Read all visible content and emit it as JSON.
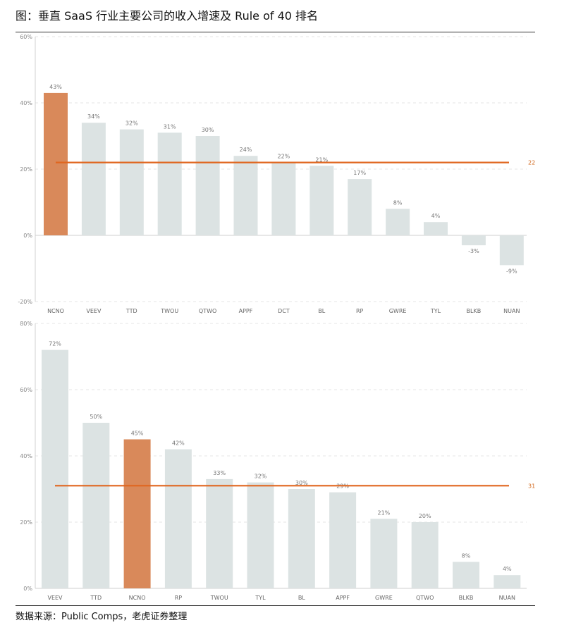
{
  "header": {
    "title": "图：垂直 SaaS 行业主要公司的收入增速及 Rule of 40 排名"
  },
  "footer": {
    "source": "数据来源：Public Comps，老虎证券整理"
  },
  "colors": {
    "bar": "#dce3e3",
    "highlight": "#d9895a",
    "reference_line": "#e0661f"
  },
  "chart_data": [
    {
      "type": "bar",
      "categories": [
        "NCNO",
        "VEEV",
        "TTD",
        "TWOU",
        "QTWO",
        "APPF",
        "DCT",
        "BL",
        "RP",
        "GWRE",
        "TYL",
        "BLKB",
        "NUAN"
      ],
      "values": [
        43,
        34,
        32,
        31,
        30,
        24,
        22,
        21,
        17,
        8,
        4,
        -3,
        -9
      ],
      "data_labels": [
        "43%",
        "34%",
        "32%",
        "31%",
        "30%",
        "24%",
        "22%",
        "21%",
        "17%",
        "8%",
        "4%",
        "-3%",
        "-9%"
      ],
      "highlight": "NCNO",
      "reference_line": {
        "value": 22,
        "label": "22"
      },
      "yticks": [
        "60%",
        "40%",
        "20%",
        "0%",
        "-20%"
      ],
      "ylim": [
        -20,
        60
      ],
      "grid": true
    },
    {
      "type": "bar",
      "categories": [
        "VEEV",
        "TTD",
        "NCNO",
        "RP",
        "TWOU",
        "TYL",
        "BL",
        "APPF",
        "GWRE",
        "QTWO",
        "BLKB",
        "NUAN"
      ],
      "values": [
        72,
        50,
        45,
        42,
        33,
        32,
        30,
        29,
        21,
        20,
        8,
        4
      ],
      "data_labels": [
        "72%",
        "50%",
        "45%",
        "42%",
        "33%",
        "32%",
        "30%",
        "29%",
        "21%",
        "20%",
        "8%",
        "4%"
      ],
      "highlight": "NCNO",
      "reference_line": {
        "value": 31,
        "label": "31"
      },
      "yticks": [
        "80%",
        "60%",
        "40%",
        "20%",
        "0%"
      ],
      "ylim": [
        0,
        80
      ],
      "grid": true
    }
  ]
}
